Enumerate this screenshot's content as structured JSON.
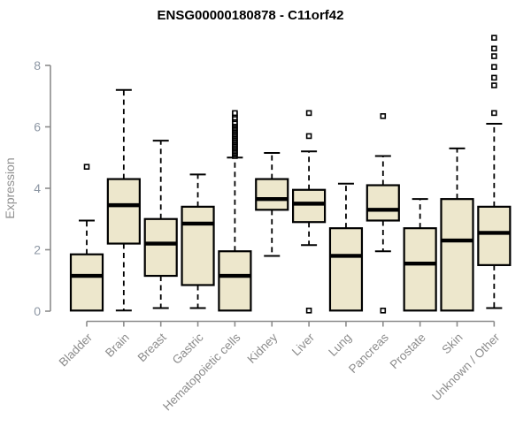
{
  "chart_data": {
    "type": "boxplot",
    "title": "ENSG00000180878 - C11orf42",
    "ylabel": "Expression",
    "xlabel": "",
    "ylim": [
      0,
      9
    ],
    "yticks": [
      0,
      2,
      4,
      6,
      8
    ],
    "grid": false,
    "legend": "none",
    "categories": [
      "Bladder",
      "Brain",
      "Breast",
      "Gastric",
      "Hematopoietic cells",
      "Kidney",
      "Liver",
      "Lung",
      "Pancreas",
      "Prostate",
      "Skin",
      "Unknown / Other"
    ],
    "series": [
      {
        "name": "Bladder",
        "whisker_low": 0.02,
        "q1": 0.02,
        "median": 1.15,
        "q3": 1.85,
        "whisker_high": 2.95,
        "outliers": [
          4.7
        ]
      },
      {
        "name": "Brain",
        "whisker_low": 0.02,
        "q1": 2.2,
        "median": 3.45,
        "q3": 4.3,
        "whisker_high": 7.2,
        "outliers": []
      },
      {
        "name": "Breast",
        "whisker_low": 0.1,
        "q1": 1.15,
        "median": 2.2,
        "q3": 3.0,
        "whisker_high": 5.55,
        "outliers": []
      },
      {
        "name": "Gastric",
        "whisker_low": 0.1,
        "q1": 0.85,
        "median": 2.85,
        "q3": 3.4,
        "whisker_high": 4.45,
        "outliers": []
      },
      {
        "name": "Hematopoietic cells",
        "whisker_low": 0.02,
        "q1": 0.02,
        "median": 1.15,
        "q3": 1.95,
        "whisker_high": 5.0,
        "outliers": [
          5.05,
          5.1,
          5.15,
          5.2,
          5.25,
          5.3,
          5.35,
          5.4,
          5.45,
          5.5,
          5.55,
          5.6,
          5.65,
          5.7,
          5.75,
          5.8,
          5.85,
          5.9,
          5.95,
          6.0,
          6.05,
          6.1,
          6.15,
          6.25,
          6.3,
          6.4,
          6.45
        ]
      },
      {
        "name": "Kidney",
        "whisker_low": 1.8,
        "q1": 3.3,
        "median": 3.65,
        "q3": 4.3,
        "whisker_high": 5.15,
        "outliers": []
      },
      {
        "name": "Liver",
        "whisker_low": 2.15,
        "q1": 2.9,
        "median": 3.5,
        "q3": 3.95,
        "whisker_high": 5.2,
        "outliers": [
          6.45,
          5.7,
          0.02
        ]
      },
      {
        "name": "Lung",
        "whisker_low": 0.02,
        "q1": 0.02,
        "median": 1.8,
        "q3": 2.7,
        "whisker_high": 4.15,
        "outliers": []
      },
      {
        "name": "Pancreas",
        "whisker_low": 1.95,
        "q1": 2.95,
        "median": 3.3,
        "q3": 4.1,
        "whisker_high": 5.05,
        "outliers": [
          6.35,
          0.02
        ]
      },
      {
        "name": "Prostate",
        "whisker_low": 0.02,
        "q1": 0.02,
        "median": 1.55,
        "q3": 2.7,
        "whisker_high": 3.65,
        "outliers": []
      },
      {
        "name": "Skin",
        "whisker_low": 0.02,
        "q1": 0.02,
        "median": 2.3,
        "q3": 3.65,
        "whisker_high": 5.3,
        "outliers": []
      },
      {
        "name": "Unknown / Other",
        "whisker_low": 0.1,
        "q1": 1.5,
        "median": 2.55,
        "q3": 3.4,
        "whisker_high": 6.1,
        "outliers": [
          6.45,
          7.35,
          7.6,
          7.95,
          8.3,
          8.55,
          8.9
        ]
      }
    ]
  },
  "colors": {
    "box_fill": "#EDE7CC",
    "box_stroke": "#000000",
    "median": "#000000",
    "whisker": "#000000",
    "outlier_fill": "#FFFFFF",
    "outlier_stroke": "#000000",
    "axis": "#8C8C8C",
    "tick_text": "#8D97A4",
    "category_text": "#8C8C8C",
    "ylabel_text": "#909090",
    "title_text": "#000000",
    "background": "#FFFFFF"
  }
}
